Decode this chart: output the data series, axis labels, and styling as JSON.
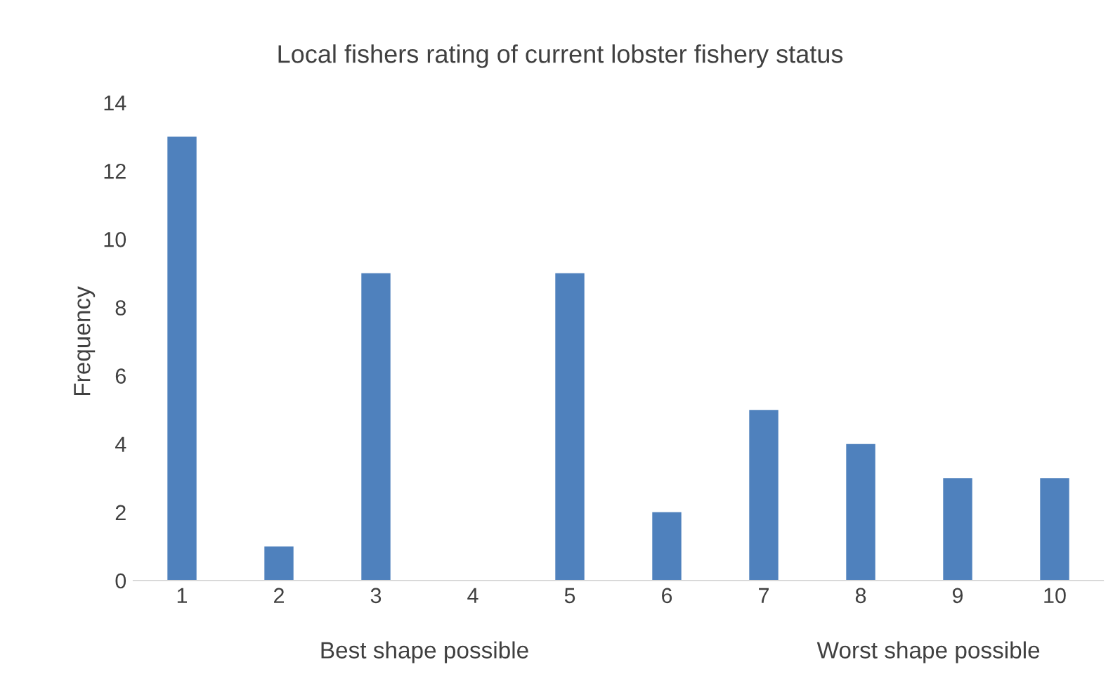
{
  "chart_data": {
    "type": "bar",
    "title": "Local fishers rating of current lobster fishery status",
    "ylabel": "Frequency",
    "categories": [
      "1",
      "2",
      "3",
      "4",
      "5",
      "6",
      "7",
      "8",
      "9",
      "10"
    ],
    "values": [
      13,
      1,
      9,
      0,
      9,
      2,
      5,
      4,
      3,
      3
    ],
    "color": "#4f81bd",
    "ylim": [
      0,
      14
    ],
    "yticks": [
      0,
      2,
      4,
      6,
      8,
      10,
      12,
      14
    ],
    "grid": false,
    "legend": false,
    "annotations": [
      "Best shape possible",
      "Worst shape possible"
    ]
  }
}
